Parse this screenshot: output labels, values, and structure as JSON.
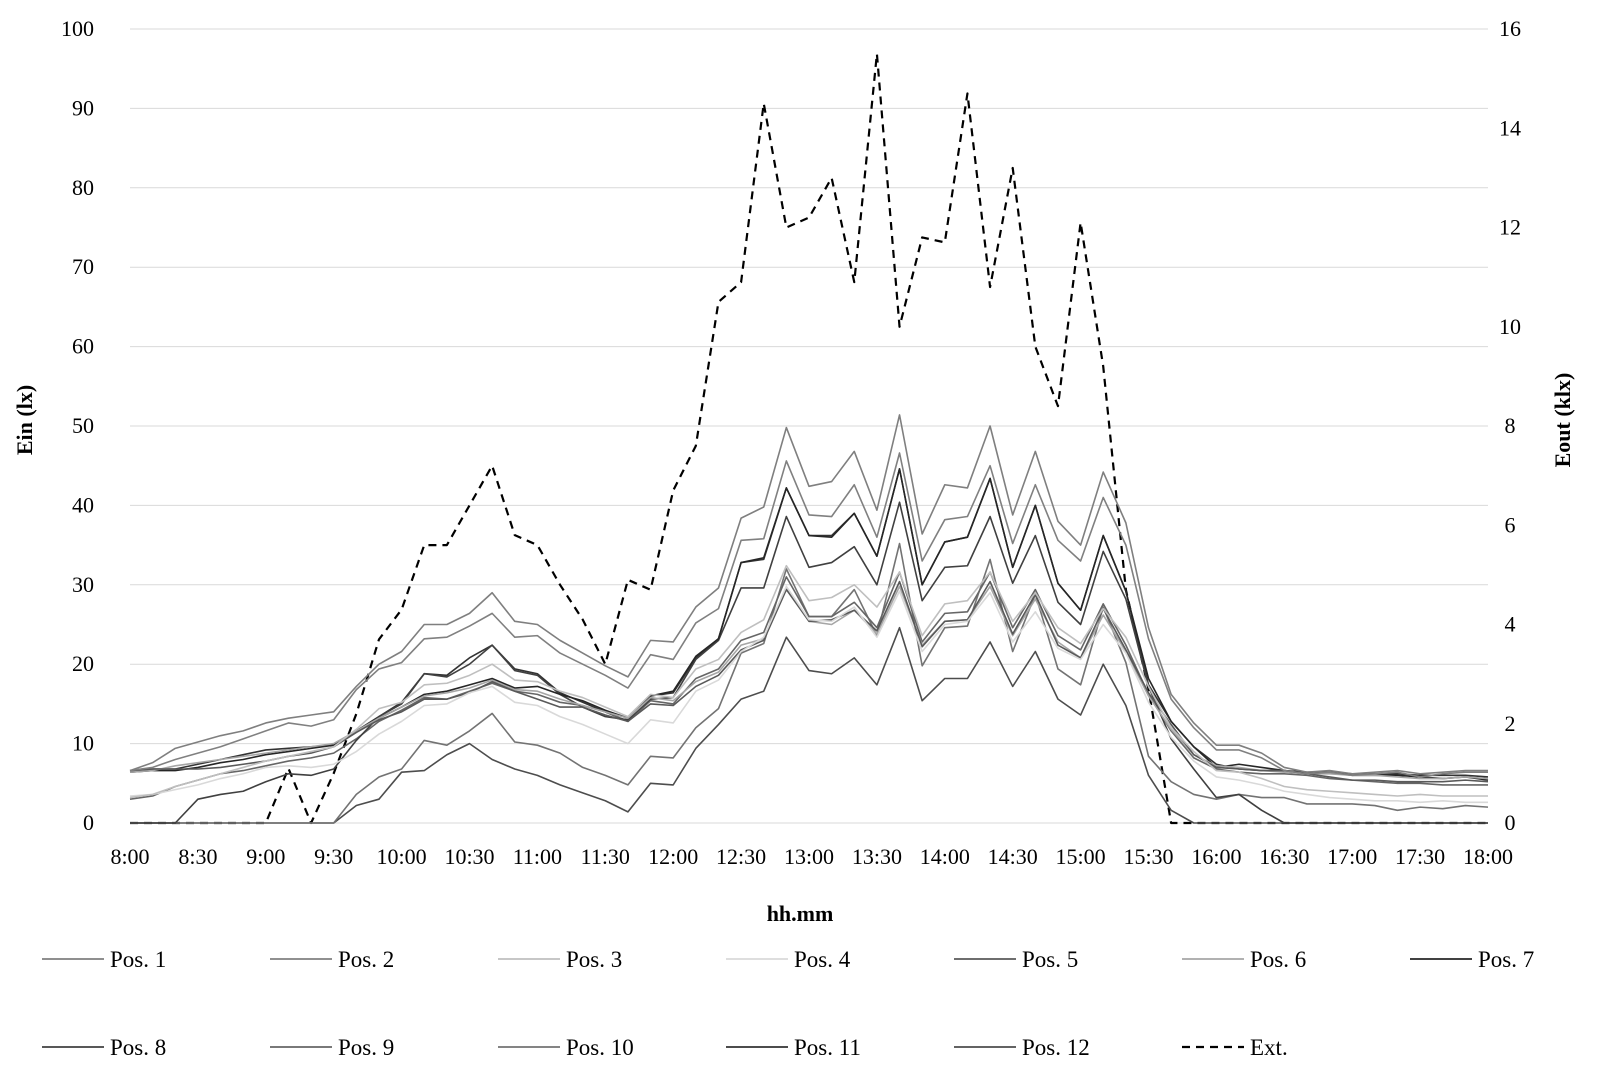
{
  "chart_data": {
    "type": "line",
    "xlabel": "hh.mm",
    "ylabel_left": "Ein (lx)",
    "ylabel_right": "Eout (klx)",
    "ylim_left": [
      0,
      100
    ],
    "ylim_right": [
      0,
      16
    ],
    "yticks_left": [
      "0",
      "10",
      "20",
      "30",
      "40",
      "50",
      "60",
      "70",
      "80",
      "90",
      "100"
    ],
    "yticks_right": [
      "0",
      "2",
      "4",
      "6",
      "8",
      "10",
      "12",
      "14",
      "16"
    ],
    "x_tick_labels": [
      "8:00",
      "8:30",
      "9:00",
      "9:30",
      "10:00",
      "10:30",
      "11:00",
      "11:30",
      "12:00",
      "12:30",
      "13:00",
      "13:30",
      "14:00",
      "14:30",
      "15:00",
      "15:30",
      "16:00",
      "16:30",
      "17:00",
      "17:30",
      "18:00"
    ],
    "x_interval_minutes": 10,
    "grid": "horizontal",
    "legend_position": "bottom",
    "series": [
      {
        "name": "Pos. 1",
        "axis": "left",
        "color": "#7f7f7f",
        "dash": "solid",
        "values": [
          6.6,
          7.6,
          9.4,
          10.2,
          11,
          11.6,
          12.6,
          13.2,
          13.6,
          14,
          17.2,
          20,
          21.6,
          25,
          25,
          26.4,
          29,
          25.4,
          25,
          23,
          21.4,
          19.8,
          18.4,
          23,
          22.8,
          27.2,
          29.6,
          38.4,
          39.8,
          49.8,
          42.4,
          43,
          46.8,
          39.4,
          51.4,
          36.4,
          42.6,
          42.2,
          50,
          38.8,
          46.8,
          38,
          35,
          44.2,
          37.8,
          24.6,
          16.2,
          12.6,
          9.8,
          9.8,
          8.8,
          7,
          6.4,
          6.6,
          6.2,
          6.4,
          6.6,
          6.2,
          6.4,
          6.6,
          6.6
        ]
      },
      {
        "name": "Pos. 2",
        "axis": "left",
        "color": "#808080",
        "dash": "solid",
        "values": [
          6.6,
          7,
          8,
          8.8,
          9.6,
          10.6,
          11.6,
          12.6,
          12.2,
          13,
          16.8,
          19.4,
          20.2,
          23.2,
          23.4,
          24.8,
          26.4,
          23.4,
          23.6,
          21.4,
          20,
          18.6,
          17,
          21.2,
          20.6,
          25.2,
          27,
          35.6,
          35.8,
          45.6,
          38.8,
          38.6,
          42.6,
          36,
          46.6,
          33,
          38.2,
          38.6,
          45,
          35.2,
          42.6,
          35.6,
          33,
          41,
          35,
          23.2,
          15.6,
          12,
          9.2,
          9.2,
          8.2,
          6.6,
          6.2,
          6.4,
          6,
          6.2,
          6.4,
          5.8,
          6.2,
          6.4,
          6.4
        ]
      },
      {
        "name": "Pos. 3",
        "axis": "left",
        "color": "#bfbfbf",
        "dash": "solid",
        "values": [
          3.2,
          3.6,
          4.6,
          5.4,
          6.2,
          7,
          7.8,
          8.4,
          9,
          9.6,
          11.8,
          14.4,
          15.2,
          17.4,
          17.6,
          18.6,
          20,
          18,
          17.8,
          16.6,
          15.8,
          14.6,
          13.4,
          16.2,
          15.8,
          19.4,
          20.6,
          24,
          25.6,
          32.4,
          28,
          28.4,
          30,
          27.2,
          31.6,
          23.6,
          27.6,
          28,
          31.6,
          25.4,
          29,
          24.6,
          22.6,
          27,
          23.4,
          17.2,
          12,
          9,
          6.6,
          6.4,
          5.6,
          4.6,
          4.2,
          4,
          3.8,
          3.6,
          3.4,
          3.6,
          3.4,
          3.4,
          3.4
        ]
      },
      {
        "name": "Pos. 4",
        "axis": "left",
        "color": "#d9d9d9",
        "dash": "solid",
        "values": [
          3.4,
          3.6,
          4.2,
          4.8,
          5.6,
          6.2,
          7,
          7.2,
          7,
          7.4,
          9,
          11.2,
          12.8,
          14.8,
          15,
          16.4,
          17.2,
          15.2,
          14.8,
          13.4,
          12.4,
          11.2,
          10,
          13,
          12.6,
          16.6,
          18,
          21.6,
          23.4,
          29.8,
          25.6,
          25.4,
          27.2,
          23.4,
          29.2,
          21.6,
          25,
          25.4,
          29,
          22.8,
          26.6,
          22,
          20.6,
          25,
          21.4,
          15.2,
          10.8,
          7.8,
          5.8,
          5.4,
          4.8,
          4,
          3.6,
          3.2,
          3,
          2.8,
          2.8,
          2.6,
          2.8,
          2.6,
          2.6
        ]
      },
      {
        "name": "Pos. 5",
        "axis": "left",
        "color": "#595959",
        "dash": "solid",
        "values": [
          6.6,
          6.8,
          6.8,
          6.8,
          7,
          7.4,
          7.8,
          8.4,
          8.8,
          9.6,
          11.4,
          13,
          14,
          15.6,
          15.6,
          16.4,
          17.8,
          16.6,
          15.6,
          14.6,
          14.6,
          13.6,
          12.8,
          15,
          14.8,
          17.2,
          18.6,
          21.8,
          23,
          29.4,
          25.4,
          25.6,
          26.8,
          24.2,
          30.4,
          22.2,
          25.4,
          25.6,
          30.4,
          23.8,
          28.8,
          22.4,
          20.8,
          27,
          21.8,
          16.4,
          12.4,
          8.6,
          7,
          6.8,
          6.6,
          6.6,
          6.2,
          5.8,
          5.4,
          5.4,
          5.2,
          5.2,
          5.2,
          5.4,
          5.2
        ]
      },
      {
        "name": "Pos. 6",
        "axis": "left",
        "color": "#a6a6a6",
        "dash": "solid",
        "values": [
          6.4,
          6.6,
          7.2,
          7.6,
          8,
          8.4,
          8.8,
          9.2,
          9.6,
          10,
          11.6,
          13.2,
          14.6,
          16,
          16.4,
          17,
          18,
          16.8,
          16.6,
          15.6,
          14.8,
          14,
          13.2,
          15.8,
          15.4,
          17.8,
          19,
          22.4,
          23.2,
          29.6,
          25.4,
          25,
          26.8,
          23.8,
          29.8,
          22.4,
          25.4,
          25.6,
          29.8,
          23.6,
          28.2,
          22.8,
          20.8,
          26.2,
          21.6,
          16,
          11.8,
          8.6,
          7.2,
          7,
          6.6,
          6.4,
          6.2,
          6.2,
          6,
          6,
          5.8,
          5.6,
          5.6,
          5.8,
          5.6
        ]
      },
      {
        "name": "Pos. 7",
        "axis": "left",
        "color": "#262626",
        "dash": "solid",
        "values": [
          6.4,
          6.6,
          6.6,
          7,
          7.6,
          8,
          8.6,
          9,
          9.4,
          9.8,
          11.6,
          13.2,
          14.6,
          16.2,
          16.6,
          17.4,
          18.2,
          17,
          17.2,
          16.2,
          15.4,
          14.2,
          13.2,
          16,
          16.6,
          21,
          23.2,
          32.8,
          33.4,
          42.2,
          36.2,
          36,
          39,
          33.6,
          44.6,
          30,
          35.4,
          36,
          43.4,
          32.2,
          40,
          30.2,
          26.8,
          36.2,
          29.2,
          18.2,
          12.8,
          9.6,
          7,
          7.4,
          7,
          6.6,
          6.2,
          6.4,
          6,
          6,
          6,
          5.8,
          5.6,
          5.8,
          5.4
        ]
      },
      {
        "name": "Pos. 8",
        "axis": "left",
        "color": "#404040",
        "dash": "solid",
        "values": [
          0,
          0,
          0,
          3,
          3.6,
          4,
          5.2,
          6.2,
          6,
          6.8,
          10.4,
          13.4,
          15,
          18.8,
          18.4,
          20,
          22.4,
          19.2,
          18.6,
          16.2,
          14.6,
          13.4,
          13,
          15.6,
          15.8,
          20.6,
          23,
          29.6,
          29.6,
          38.6,
          32.2,
          32.8,
          34.8,
          30,
          40.4,
          28,
          32.2,
          32.4,
          38.6,
          30.2,
          36.2,
          27.8,
          25,
          34.2,
          28.2,
          17.2,
          10.6,
          6.8,
          3.2,
          3.6,
          1.6,
          0,
          0,
          0,
          0,
          0,
          0,
          0,
          0,
          0,
          0
        ]
      },
      {
        "name": "Pos. 9",
        "axis": "left",
        "color": "#666666",
        "dash": "solid",
        "values": [
          3,
          3.4,
          4.6,
          5.4,
          6.2,
          6.6,
          7.2,
          7.8,
          8.2,
          8.8,
          10.6,
          12.8,
          14.2,
          15.8,
          15.6,
          16.6,
          17.6,
          16.6,
          16.2,
          15.2,
          14.8,
          14,
          12.8,
          15.4,
          15,
          18.2,
          19.4,
          23,
          24,
          31,
          26,
          26,
          27.8,
          24.6,
          31.6,
          22.8,
          26.4,
          26.6,
          31.6,
          24.6,
          29.4,
          23.6,
          21.8,
          27.6,
          22.4,
          16.2,
          11.6,
          8.2,
          6.8,
          6.4,
          6.2,
          6.2,
          6,
          5.6,
          5.4,
          5.2,
          5,
          5,
          4.8,
          4.8,
          4.8
        ]
      },
      {
        "name": "Pos. 10",
        "axis": "left",
        "color": "#737373",
        "dash": "solid",
        "values": [
          0,
          0,
          0,
          0,
          0,
          0,
          0,
          0,
          0,
          0,
          3.6,
          5.8,
          6.8,
          10.4,
          9.8,
          11.6,
          13.8,
          10.2,
          9.8,
          8.8,
          7,
          6,
          4.8,
          8.4,
          8.2,
          12,
          14.4,
          21.4,
          22.6,
          32,
          26,
          26,
          29.4,
          23.6,
          35.2,
          19.8,
          24.6,
          24.8,
          33.2,
          21.6,
          28.8,
          19.4,
          17.4,
          27.2,
          20.2,
          8.4,
          5.2,
          3.6,
          3,
          3.6,
          3.2,
          3.2,
          2.4,
          2.4,
          2.4,
          2.2,
          1.6,
          2,
          1.8,
          2.2,
          2
        ]
      },
      {
        "name": "Pos. 11",
        "axis": "left",
        "color": "#333333",
        "dash": "solid",
        "values": [
          6.6,
          6.8,
          6.8,
          7.4,
          8,
          8.6,
          9.2,
          9.4,
          9.6,
          9.8,
          11.6,
          13.4,
          15.2,
          18.8,
          18.6,
          20.8,
          22.4,
          19.4,
          18.8,
          16.4,
          15.2,
          14,
          12.8,
          16,
          16.4,
          20.8,
          23.2,
          32.8,
          33.2,
          42.2,
          36.2,
          36.2,
          39,
          33.6,
          44.6,
          30,
          35.4,
          36,
          43.4,
          32.2,
          40,
          30.2,
          26.8,
          36.2,
          29.2,
          17.4,
          12.8,
          9.6,
          7.4,
          6.8,
          6.6,
          6.6,
          6.4,
          6.4,
          6.2,
          6.2,
          6.2,
          6,
          6,
          6,
          5.8
        ]
      },
      {
        "name": "Pos. 12",
        "axis": "left",
        "color": "#4d4d4d",
        "dash": "solid",
        "values": [
          0,
          0,
          0,
          0,
          0,
          0,
          0,
          0,
          0,
          0,
          2.2,
          3,
          6.4,
          6.6,
          8.6,
          10,
          8,
          6.8,
          6,
          4.8,
          3.8,
          2.8,
          1.4,
          5,
          4.8,
          9.4,
          12.4,
          15.6,
          16.6,
          23.4,
          19.2,
          18.8,
          20.8,
          17.4,
          24.6,
          15.4,
          18.2,
          18.2,
          22.8,
          17.2,
          21.6,
          15.6,
          13.6,
          20,
          14.8,
          6,
          1.6,
          0,
          0,
          0,
          0,
          0,
          0,
          0,
          0,
          0,
          0,
          0,
          0,
          0,
          0
        ]
      },
      {
        "name": "Ext.",
        "axis": "right",
        "color": "#000000",
        "dash": "dashed",
        "values": [
          0,
          0,
          0,
          0,
          0,
          0,
          0,
          1.1,
          0,
          1,
          2.2,
          3.7,
          4.3,
          5.6,
          5.6,
          6.4,
          7.2,
          5.8,
          5.6,
          4.8,
          4.1,
          3.2,
          4.9,
          4.7,
          6.7,
          7.6,
          10.5,
          10.9,
          14.5,
          12,
          12.2,
          13,
          10.9,
          15.5,
          10,
          11.8,
          11.7,
          14.7,
          10.8,
          13.2,
          9.6,
          8.4,
          12.1,
          9.2,
          4.7,
          2.7,
          0,
          0,
          0,
          0,
          0,
          0,
          0,
          0,
          0,
          0,
          0,
          0,
          0,
          0,
          0
        ]
      }
    ]
  }
}
